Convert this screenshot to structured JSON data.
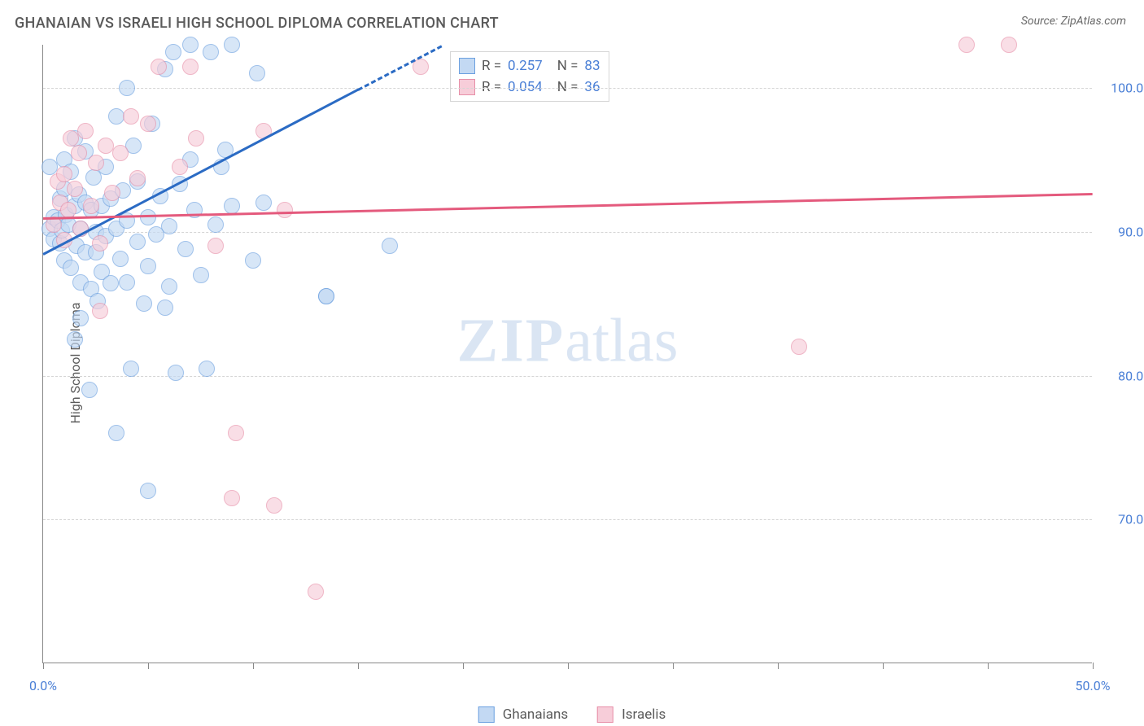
{
  "title": "GHANAIAN VS ISRAELI HIGH SCHOOL DIPLOMA CORRELATION CHART",
  "source_label": "Source: ",
  "source_name": "ZipAtlas.com",
  "ylabel": "High School Diploma",
  "watermark_bold": "ZIP",
  "watermark_light": "atlas",
  "chart": {
    "type": "scatter",
    "xlim": [
      0,
      50
    ],
    "ylim": [
      60,
      103
    ],
    "xticks": [
      0,
      5,
      10,
      15,
      20,
      25,
      30,
      35,
      40,
      45,
      50
    ],
    "xtick_labels": {
      "0": "0.0%",
      "50": "50.0%"
    },
    "yticks": [
      70,
      80,
      90,
      100
    ],
    "ytick_labels": [
      "70.0%",
      "80.0%",
      "90.0%",
      "100.0%"
    ],
    "grid_color": "#d5d5d5",
    "axis_color": "#888888",
    "label_color": "#4a7fd6",
    "background_color": "#ffffff",
    "marker_radius": 10,
    "series": [
      {
        "name": "Ghanaians",
        "fill": "#c3d9f3",
        "stroke": "#6ca0e0",
        "fill_opacity": 0.65,
        "R": "0.257",
        "N": "83",
        "trend": {
          "x0": 0,
          "y0": 88.5,
          "x1": 19,
          "y1": 103,
          "color": "#2b6bc4",
          "dash_after_x": 15
        },
        "points": [
          [
            0.3,
            90.2
          ],
          [
            0.5,
            89.5
          ],
          [
            0.5,
            91.0
          ],
          [
            0.7,
            90.8
          ],
          [
            0.8,
            89.2
          ],
          [
            0.8,
            92.3
          ],
          [
            0.9,
            90.1
          ],
          [
            1.0,
            93.0
          ],
          [
            1.0,
            95.0
          ],
          [
            1.0,
            88.0
          ],
          [
            1.1,
            91.2
          ],
          [
            1.2,
            90.5
          ],
          [
            1.3,
            94.2
          ],
          [
            1.3,
            87.5
          ],
          [
            1.5,
            91.8
          ],
          [
            1.5,
            96.5
          ],
          [
            1.5,
            82.5
          ],
          [
            1.6,
            89.0
          ],
          [
            1.7,
            92.6
          ],
          [
            1.8,
            86.5
          ],
          [
            1.8,
            90.2
          ],
          [
            1.8,
            84.0
          ],
          [
            2.0,
            88.6
          ],
          [
            2.0,
            92.0
          ],
          [
            2.0,
            95.6
          ],
          [
            2.2,
            79.0
          ],
          [
            2.3,
            91.5
          ],
          [
            2.3,
            86.0
          ],
          [
            2.4,
            93.8
          ],
          [
            2.5,
            90.0
          ],
          [
            2.5,
            88.6
          ],
          [
            2.6,
            85.2
          ],
          [
            2.8,
            91.8
          ],
          [
            2.8,
            87.2
          ],
          [
            3.0,
            89.7
          ],
          [
            3.0,
            94.5
          ],
          [
            3.2,
            86.4
          ],
          [
            3.2,
            92.3
          ],
          [
            3.5,
            90.2
          ],
          [
            3.5,
            98.0
          ],
          [
            3.5,
            76.0
          ],
          [
            3.7,
            88.1
          ],
          [
            3.8,
            92.9
          ],
          [
            4.0,
            100.0
          ],
          [
            4.0,
            86.5
          ],
          [
            4.0,
            90.8
          ],
          [
            4.2,
            80.5
          ],
          [
            4.3,
            96.0
          ],
          [
            4.5,
            89.3
          ],
          [
            4.5,
            93.5
          ],
          [
            4.8,
            85.0
          ],
          [
            5.0,
            91.0
          ],
          [
            5.0,
            87.6
          ],
          [
            5.0,
            72.0
          ],
          [
            5.2,
            97.5
          ],
          [
            5.4,
            89.8
          ],
          [
            5.6,
            92.5
          ],
          [
            5.8,
            101.3
          ],
          [
            5.8,
            84.7
          ],
          [
            6.0,
            90.4
          ],
          [
            6.0,
            86.2
          ],
          [
            6.2,
            102.5
          ],
          [
            6.3,
            80.2
          ],
          [
            6.5,
            93.3
          ],
          [
            6.8,
            88.8
          ],
          [
            7.0,
            95.0
          ],
          [
            7.0,
            103.0
          ],
          [
            7.2,
            91.5
          ],
          [
            7.5,
            87.0
          ],
          [
            7.8,
            80.5
          ],
          [
            8.0,
            102.5
          ],
          [
            8.2,
            90.5
          ],
          [
            8.5,
            94.5
          ],
          [
            8.7,
            95.7
          ],
          [
            9.0,
            91.8
          ],
          [
            9.0,
            103.0
          ],
          [
            10.0,
            88.0
          ],
          [
            10.2,
            101.0
          ],
          [
            10.5,
            92.0
          ],
          [
            13.5,
            85.5
          ],
          [
            16.5,
            89.0
          ],
          [
            13.5,
            85.5
          ],
          [
            0.3,
            94.5
          ]
        ]
      },
      {
        "name": "Israelis",
        "fill": "#f7cdd9",
        "stroke": "#e78fa8",
        "fill_opacity": 0.65,
        "R": "0.054",
        "N": "36",
        "trend": {
          "x0": 0,
          "y0": 91.0,
          "x1": 50,
          "y1": 92.7,
          "color": "#e45a7d",
          "dash_after_x": null
        },
        "points": [
          [
            0.5,
            90.5
          ],
          [
            0.7,
            93.5
          ],
          [
            0.8,
            92.0
          ],
          [
            1.0,
            89.4
          ],
          [
            1.0,
            94.0
          ],
          [
            1.2,
            91.5
          ],
          [
            1.3,
            96.5
          ],
          [
            1.5,
            93.0
          ],
          [
            1.7,
            95.5
          ],
          [
            1.8,
            90.2
          ],
          [
            2.0,
            97.0
          ],
          [
            2.3,
            91.8
          ],
          [
            2.5,
            94.8
          ],
          [
            2.7,
            89.2
          ],
          [
            3.0,
            96.0
          ],
          [
            3.3,
            92.7
          ],
          [
            3.7,
            95.5
          ],
          [
            4.2,
            98.0
          ],
          [
            4.5,
            93.7
          ],
          [
            5.0,
            97.5
          ],
          [
            5.5,
            101.5
          ],
          [
            6.5,
            94.5
          ],
          [
            7.0,
            101.5
          ],
          [
            7.3,
            96.5
          ],
          [
            8.2,
            89.0
          ],
          [
            9.0,
            71.5
          ],
          [
            9.2,
            76.0
          ],
          [
            10.5,
            97.0
          ],
          [
            11.0,
            71.0
          ],
          [
            11.5,
            91.5
          ],
          [
            13.0,
            65.0
          ],
          [
            18.0,
            101.5
          ],
          [
            36.0,
            82.0
          ],
          [
            44.0,
            103.0
          ],
          [
            46.0,
            103.0
          ],
          [
            2.7,
            84.5
          ]
        ]
      }
    ]
  },
  "legend_rn_label_R": "R =  ",
  "legend_rn_label_N": "N = ",
  "legend_bottom": [
    "Ghanaians",
    "Israelis"
  ]
}
